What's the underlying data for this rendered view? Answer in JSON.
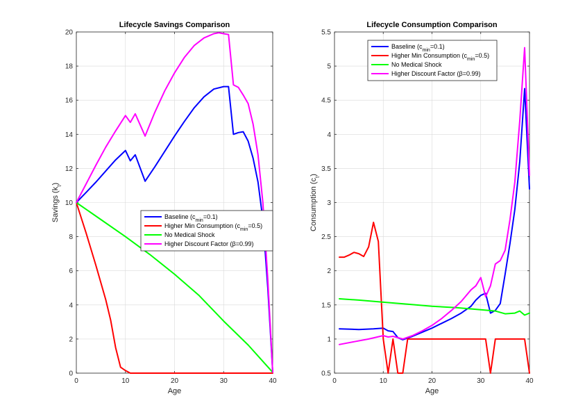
{
  "chart_data": [
    {
      "type": "line",
      "title": "Lifecycle Savings Comparison",
      "xlabel": "Age",
      "ylabel_main": "Savings (k",
      "ylabel_sub": "t",
      "ylabel_end": ")",
      "xlim": [
        0,
        40
      ],
      "ylim": [
        0,
        20
      ],
      "xticks": [
        0,
        10,
        20,
        30,
        40
      ],
      "yticks": [
        0,
        2,
        4,
        6,
        8,
        10,
        12,
        14,
        16,
        18,
        20
      ],
      "grid": true,
      "legend_position": "right-middle",
      "series": [
        {
          "name": "Baseline (c_min=0.1)",
          "legend": {
            "pre": "Baseline (c",
            "sub": "min",
            "post": "=0.1)"
          },
          "color": "#0000ff",
          "x": [
            0,
            2,
            4,
            6,
            8,
            10,
            11,
            12,
            14,
            16,
            18,
            20,
            22,
            24,
            26,
            28,
            30,
            31,
            32,
            33,
            34,
            35,
            36,
            37,
            38,
            39,
            40
          ],
          "y": [
            10,
            10.6,
            11.2,
            11.85,
            12.5,
            13.05,
            12.45,
            12.8,
            11.25,
            12.1,
            13.0,
            13.9,
            14.75,
            15.55,
            16.2,
            16.65,
            16.8,
            16.8,
            14.0,
            14.1,
            14.15,
            13.6,
            12.6,
            11.2,
            9.0,
            5.0,
            0.05
          ]
        },
        {
          "name": "Higher Min Consumption (c_min=0.5)",
          "legend": {
            "pre": "Higher Min Consumption (c",
            "sub": "min",
            "post": "=0.5)"
          },
          "color": "#ff0000",
          "x": [
            0,
            2,
            4,
            6,
            7,
            8,
            9,
            10,
            11,
            20,
            30,
            40
          ],
          "y": [
            10,
            8.2,
            6.3,
            4.3,
            3.1,
            1.5,
            0.35,
            0.15,
            0.0,
            0.0,
            0.0,
            0.0
          ]
        },
        {
          "name": "No Medical Shock",
          "legend": {
            "pre": "No Medical Shock",
            "sub": "",
            "post": ""
          },
          "color": "#00ff00",
          "x": [
            0,
            5,
            10,
            15,
            20,
            25,
            30,
            35,
            40
          ],
          "y": [
            10,
            9.0,
            8.0,
            6.95,
            5.8,
            4.55,
            3.05,
            1.65,
            0.05
          ]
        },
        {
          "name": "Higher Discount Factor (β=0.99)",
          "legend": {
            "pre": "Higher Discount Factor (β=0.99)",
            "sub": "",
            "post": ""
          },
          "color": "#ff00ff",
          "x": [
            0,
            2,
            4,
            6,
            8,
            10,
            11,
            12,
            14,
            16,
            18,
            20,
            22,
            24,
            26,
            28,
            29,
            30,
            31,
            32,
            33,
            34,
            35,
            36,
            37,
            38,
            39,
            40
          ],
          "y": [
            10,
            11.1,
            12.2,
            13.25,
            14.2,
            15.1,
            14.7,
            15.2,
            13.9,
            15.3,
            16.55,
            17.6,
            18.5,
            19.2,
            19.65,
            19.9,
            19.95,
            19.9,
            19.85,
            16.9,
            16.75,
            16.3,
            15.8,
            14.6,
            12.8,
            10.0,
            5.5,
            0.05
          ]
        }
      ]
    },
    {
      "type": "line",
      "title": "Lifecycle Consumption Comparison",
      "xlabel": "Age",
      "ylabel_main": "Consumption (c",
      "ylabel_sub": "t",
      "ylabel_end": ")",
      "xlim": [
        0,
        40
      ],
      "ylim": [
        0.5,
        5.5
      ],
      "xticks": [
        0,
        10,
        20,
        30,
        40
      ],
      "yticks": [
        0.5,
        1,
        1.5,
        2,
        2.5,
        3,
        3.5,
        4,
        4.5,
        5,
        5.5
      ],
      "grid": true,
      "legend_position": "top-center",
      "series": [
        {
          "name": "Baseline (c_min=0.1)",
          "legend": {
            "pre": "Baseline (c",
            "sub": "min",
            "post": "=0.1)"
          },
          "color": "#0000ff",
          "x": [
            1,
            5,
            8,
            10,
            11,
            12,
            13,
            14,
            16,
            18,
            20,
            22,
            24,
            26,
            28,
            29,
            30,
            31,
            32,
            33,
            34,
            35,
            36,
            37,
            38,
            39,
            40
          ],
          "y": [
            1.15,
            1.14,
            1.15,
            1.16,
            1.12,
            1.11,
            1.02,
            0.99,
            1.04,
            1.1,
            1.16,
            1.23,
            1.3,
            1.38,
            1.48,
            1.57,
            1.64,
            1.67,
            1.38,
            1.42,
            1.52,
            1.95,
            2.4,
            2.9,
            3.6,
            4.67,
            3.2
          ]
        },
        {
          "name": "Higher Min Consumption (c_min=0.5)",
          "legend": {
            "pre": "Higher Min Consumption (c",
            "sub": "min",
            "post": "=0.5)"
          },
          "color": "#ff0000",
          "x": [
            1,
            2,
            3,
            4,
            5,
            6,
            7,
            8,
            9,
            10,
            11,
            12,
            13,
            14,
            15,
            20,
            25,
            30,
            31,
            32,
            33,
            38,
            39,
            40
          ],
          "y": [
            2.2,
            2.2,
            2.23,
            2.27,
            2.25,
            2.21,
            2.35,
            2.71,
            2.43,
            1.0,
            0.5,
            1.0,
            0.5,
            0.5,
            1.0,
            1.0,
            1.0,
            1.0,
            1.0,
            0.5,
            1.0,
            1.0,
            1.0,
            0.5
          ]
        },
        {
          "name": "No Medical Shock",
          "legend": {
            "pre": "No Medical Shock",
            "sub": "",
            "post": ""
          },
          "color": "#00ff00",
          "x": [
            1,
            5,
            10,
            15,
            20,
            25,
            30,
            33,
            35,
            37,
            38,
            39,
            40
          ],
          "y": [
            1.59,
            1.57,
            1.54,
            1.51,
            1.48,
            1.46,
            1.43,
            1.41,
            1.37,
            1.38,
            1.41,
            1.35,
            1.38
          ]
        },
        {
          "name": "Higher Discount Factor (β=0.99)",
          "legend": {
            "pre": "Higher Discount Factor (β=0.99)",
            "sub": "",
            "post": ""
          },
          "color": "#ff00ff",
          "x": [
            1,
            4,
            7,
            10,
            11,
            12,
            14,
            16,
            18,
            20,
            22,
            24,
            26,
            28,
            29,
            30,
            31,
            32,
            33,
            34,
            35,
            36,
            37,
            38,
            39,
            40
          ],
          "y": [
            0.92,
            0.96,
            1.0,
            1.05,
            1.03,
            1.04,
            1.0,
            1.05,
            1.12,
            1.2,
            1.3,
            1.42,
            1.55,
            1.72,
            1.78,
            1.9,
            1.62,
            1.78,
            2.1,
            2.15,
            2.3,
            2.75,
            3.3,
            4.2,
            5.27,
            3.4
          ]
        }
      ]
    }
  ]
}
